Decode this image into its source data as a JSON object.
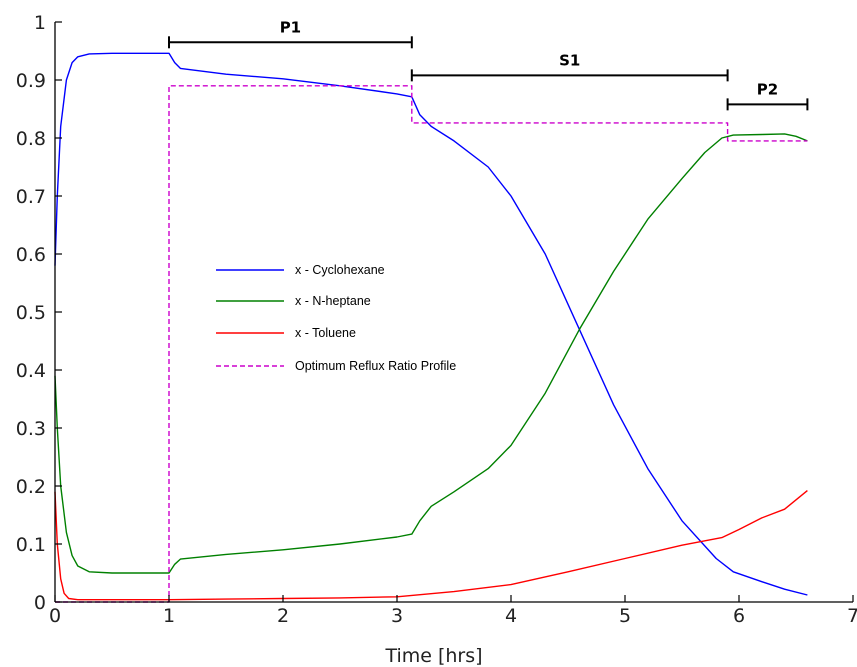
{
  "chart_data": {
    "type": "line",
    "title": "",
    "xlabel": "Time [hrs]",
    "ylabel": "",
    "xlim": [
      0,
      7
    ],
    "ylim": [
      0,
      1
    ],
    "x_ticks": [
      "0",
      "1",
      "2",
      "3",
      "4",
      "5",
      "6",
      "7"
    ],
    "y_ticks": [
      "0",
      "0.1",
      "0.2",
      "0.3",
      "0.4",
      "0.5",
      "0.6",
      "0.7",
      "0.8",
      "0.9",
      "1"
    ],
    "grid": false,
    "legend_position": "center-left",
    "series": [
      {
        "name": "x - Cyclohexane",
        "color": "#0000ff",
        "dash": "solid",
        "points": [
          [
            0,
            0.58
          ],
          [
            0.02,
            0.7
          ],
          [
            0.05,
            0.82
          ],
          [
            0.1,
            0.9
          ],
          [
            0.15,
            0.93
          ],
          [
            0.2,
            0.94
          ],
          [
            0.3,
            0.945
          ],
          [
            0.5,
            0.946
          ],
          [
            0.8,
            0.946
          ],
          [
            1.0,
            0.946
          ],
          [
            1.05,
            0.93
          ],
          [
            1.1,
            0.92
          ],
          [
            1.5,
            0.91
          ],
          [
            2.0,
            0.902
          ],
          [
            2.5,
            0.89
          ],
          [
            3.0,
            0.876
          ],
          [
            3.13,
            0.871
          ],
          [
            3.2,
            0.84
          ],
          [
            3.3,
            0.82
          ],
          [
            3.5,
            0.795
          ],
          [
            3.8,
            0.75
          ],
          [
            4.0,
            0.7
          ],
          [
            4.3,
            0.6
          ],
          [
            4.6,
            0.47
          ],
          [
            4.9,
            0.34
          ],
          [
            5.2,
            0.23
          ],
          [
            5.5,
            0.14
          ],
          [
            5.8,
            0.075
          ],
          [
            5.95,
            0.052
          ],
          [
            6.2,
            0.035
          ],
          [
            6.4,
            0.022
          ],
          [
            6.6,
            0.012
          ]
        ]
      },
      {
        "name": "x - N-heptane",
        "color": "#008000",
        "dash": "solid",
        "points": [
          [
            0,
            0.39
          ],
          [
            0.02,
            0.3
          ],
          [
            0.05,
            0.2
          ],
          [
            0.1,
            0.12
          ],
          [
            0.15,
            0.08
          ],
          [
            0.2,
            0.062
          ],
          [
            0.3,
            0.052
          ],
          [
            0.5,
            0.05
          ],
          [
            0.8,
            0.05
          ],
          [
            1.0,
            0.05
          ],
          [
            1.05,
            0.065
          ],
          [
            1.1,
            0.074
          ],
          [
            1.5,
            0.082
          ],
          [
            2.0,
            0.09
          ],
          [
            2.5,
            0.1
          ],
          [
            3.0,
            0.112
          ],
          [
            3.13,
            0.117
          ],
          [
            3.2,
            0.14
          ],
          [
            3.3,
            0.165
          ],
          [
            3.5,
            0.19
          ],
          [
            3.8,
            0.23
          ],
          [
            4.0,
            0.27
          ],
          [
            4.3,
            0.36
          ],
          [
            4.6,
            0.47
          ],
          [
            4.9,
            0.57
          ],
          [
            5.2,
            0.66
          ],
          [
            5.5,
            0.73
          ],
          [
            5.7,
            0.775
          ],
          [
            5.85,
            0.8
          ],
          [
            5.95,
            0.805
          ],
          [
            6.2,
            0.806
          ],
          [
            6.4,
            0.807
          ],
          [
            6.5,
            0.803
          ],
          [
            6.6,
            0.795
          ]
        ]
      },
      {
        "name": "x - Toluene",
        "color": "#ff0000",
        "dash": "solid",
        "points": [
          [
            0,
            0.19
          ],
          [
            0.02,
            0.1
          ],
          [
            0.05,
            0.04
          ],
          [
            0.08,
            0.015
          ],
          [
            0.12,
            0.006
          ],
          [
            0.2,
            0.004
          ],
          [
            0.5,
            0.004
          ],
          [
            1.0,
            0.004
          ],
          [
            1.5,
            0.005
          ],
          [
            2.0,
            0.006
          ],
          [
            2.5,
            0.007
          ],
          [
            3.0,
            0.009
          ],
          [
            3.5,
            0.018
          ],
          [
            4.0,
            0.03
          ],
          [
            4.5,
            0.052
          ],
          [
            5.0,
            0.075
          ],
          [
            5.5,
            0.098
          ],
          [
            5.85,
            0.111
          ],
          [
            6.0,
            0.125
          ],
          [
            6.2,
            0.145
          ],
          [
            6.4,
            0.16
          ],
          [
            6.6,
            0.192
          ]
        ]
      },
      {
        "name": "Optimum Reflux Ratio Profile",
        "color": "#cc00cc",
        "dash": "dashed",
        "points": [
          [
            0,
            0
          ],
          [
            1.0,
            0
          ],
          [
            1.0,
            0.89
          ],
          [
            3.13,
            0.89
          ],
          [
            3.13,
            0.826
          ],
          [
            5.9,
            0.826
          ],
          [
            5.9,
            0.795
          ],
          [
            6.6,
            0.795
          ]
        ]
      }
    ],
    "annotations": [
      {
        "label": "P1",
        "x_start": 1.0,
        "x_end": 3.13,
        "y": 0.965
      },
      {
        "label": "S1",
        "x_start": 3.13,
        "x_end": 5.9,
        "y": 0.908
      },
      {
        "label": "P2",
        "x_start": 5.9,
        "x_end": 6.6,
        "y": 0.858
      }
    ]
  }
}
